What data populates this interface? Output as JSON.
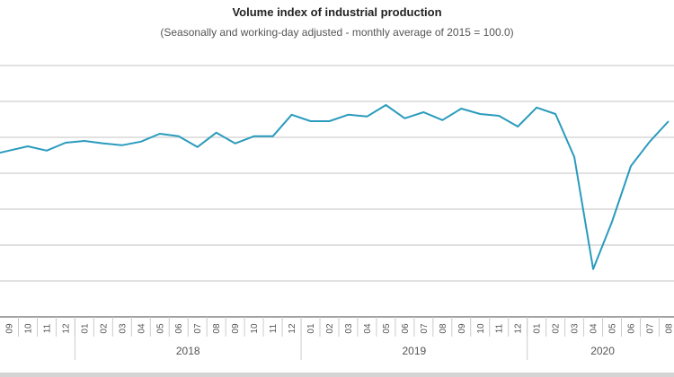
{
  "chart_data": {
    "type": "line",
    "title": "Volume index of industrial production",
    "subtitle": "(Seasonally and working-day adjusted - monthly average of 2015 = 100.0)",
    "xlabel": "",
    "ylabel": "",
    "ylim": [
      60,
      130
    ],
    "grid": true,
    "legend": "none",
    "line_color": "#2a9bbd",
    "categories": [
      "09",
      "10",
      "11",
      "12",
      "01",
      "02",
      "03",
      "04",
      "05",
      "06",
      "07",
      "08",
      "09",
      "10",
      "11",
      "12",
      "01",
      "02",
      "03",
      "04",
      "05",
      "06",
      "07",
      "08",
      "09",
      "10",
      "11",
      "12",
      "01",
      "02",
      "03",
      "04",
      "05",
      "06",
      "07",
      "08"
    ],
    "year_groups": [
      {
        "label": "",
        "start": 0,
        "count": 4
      },
      {
        "label": "2018",
        "start": 4,
        "count": 12
      },
      {
        "label": "2019",
        "start": 16,
        "count": 12
      },
      {
        "label": "2020",
        "start": 28,
        "count": 8
      }
    ],
    "series": [
      {
        "values": [
          106.3,
          107.5,
          106.3,
          108.5,
          109.0,
          108.3,
          107.8,
          108.8,
          111.0,
          110.3,
          107.3,
          111.3,
          108.3,
          110.3,
          110.3,
          116.3,
          114.5,
          114.5,
          116.3,
          115.8,
          119.0,
          115.3,
          117.0,
          114.8,
          118.0,
          116.5,
          116.0,
          113.0,
          118.3,
          116.5,
          104.5,
          73.3,
          86.5,
          102.0,
          108.8,
          114.5
        ]
      }
    ]
  }
}
